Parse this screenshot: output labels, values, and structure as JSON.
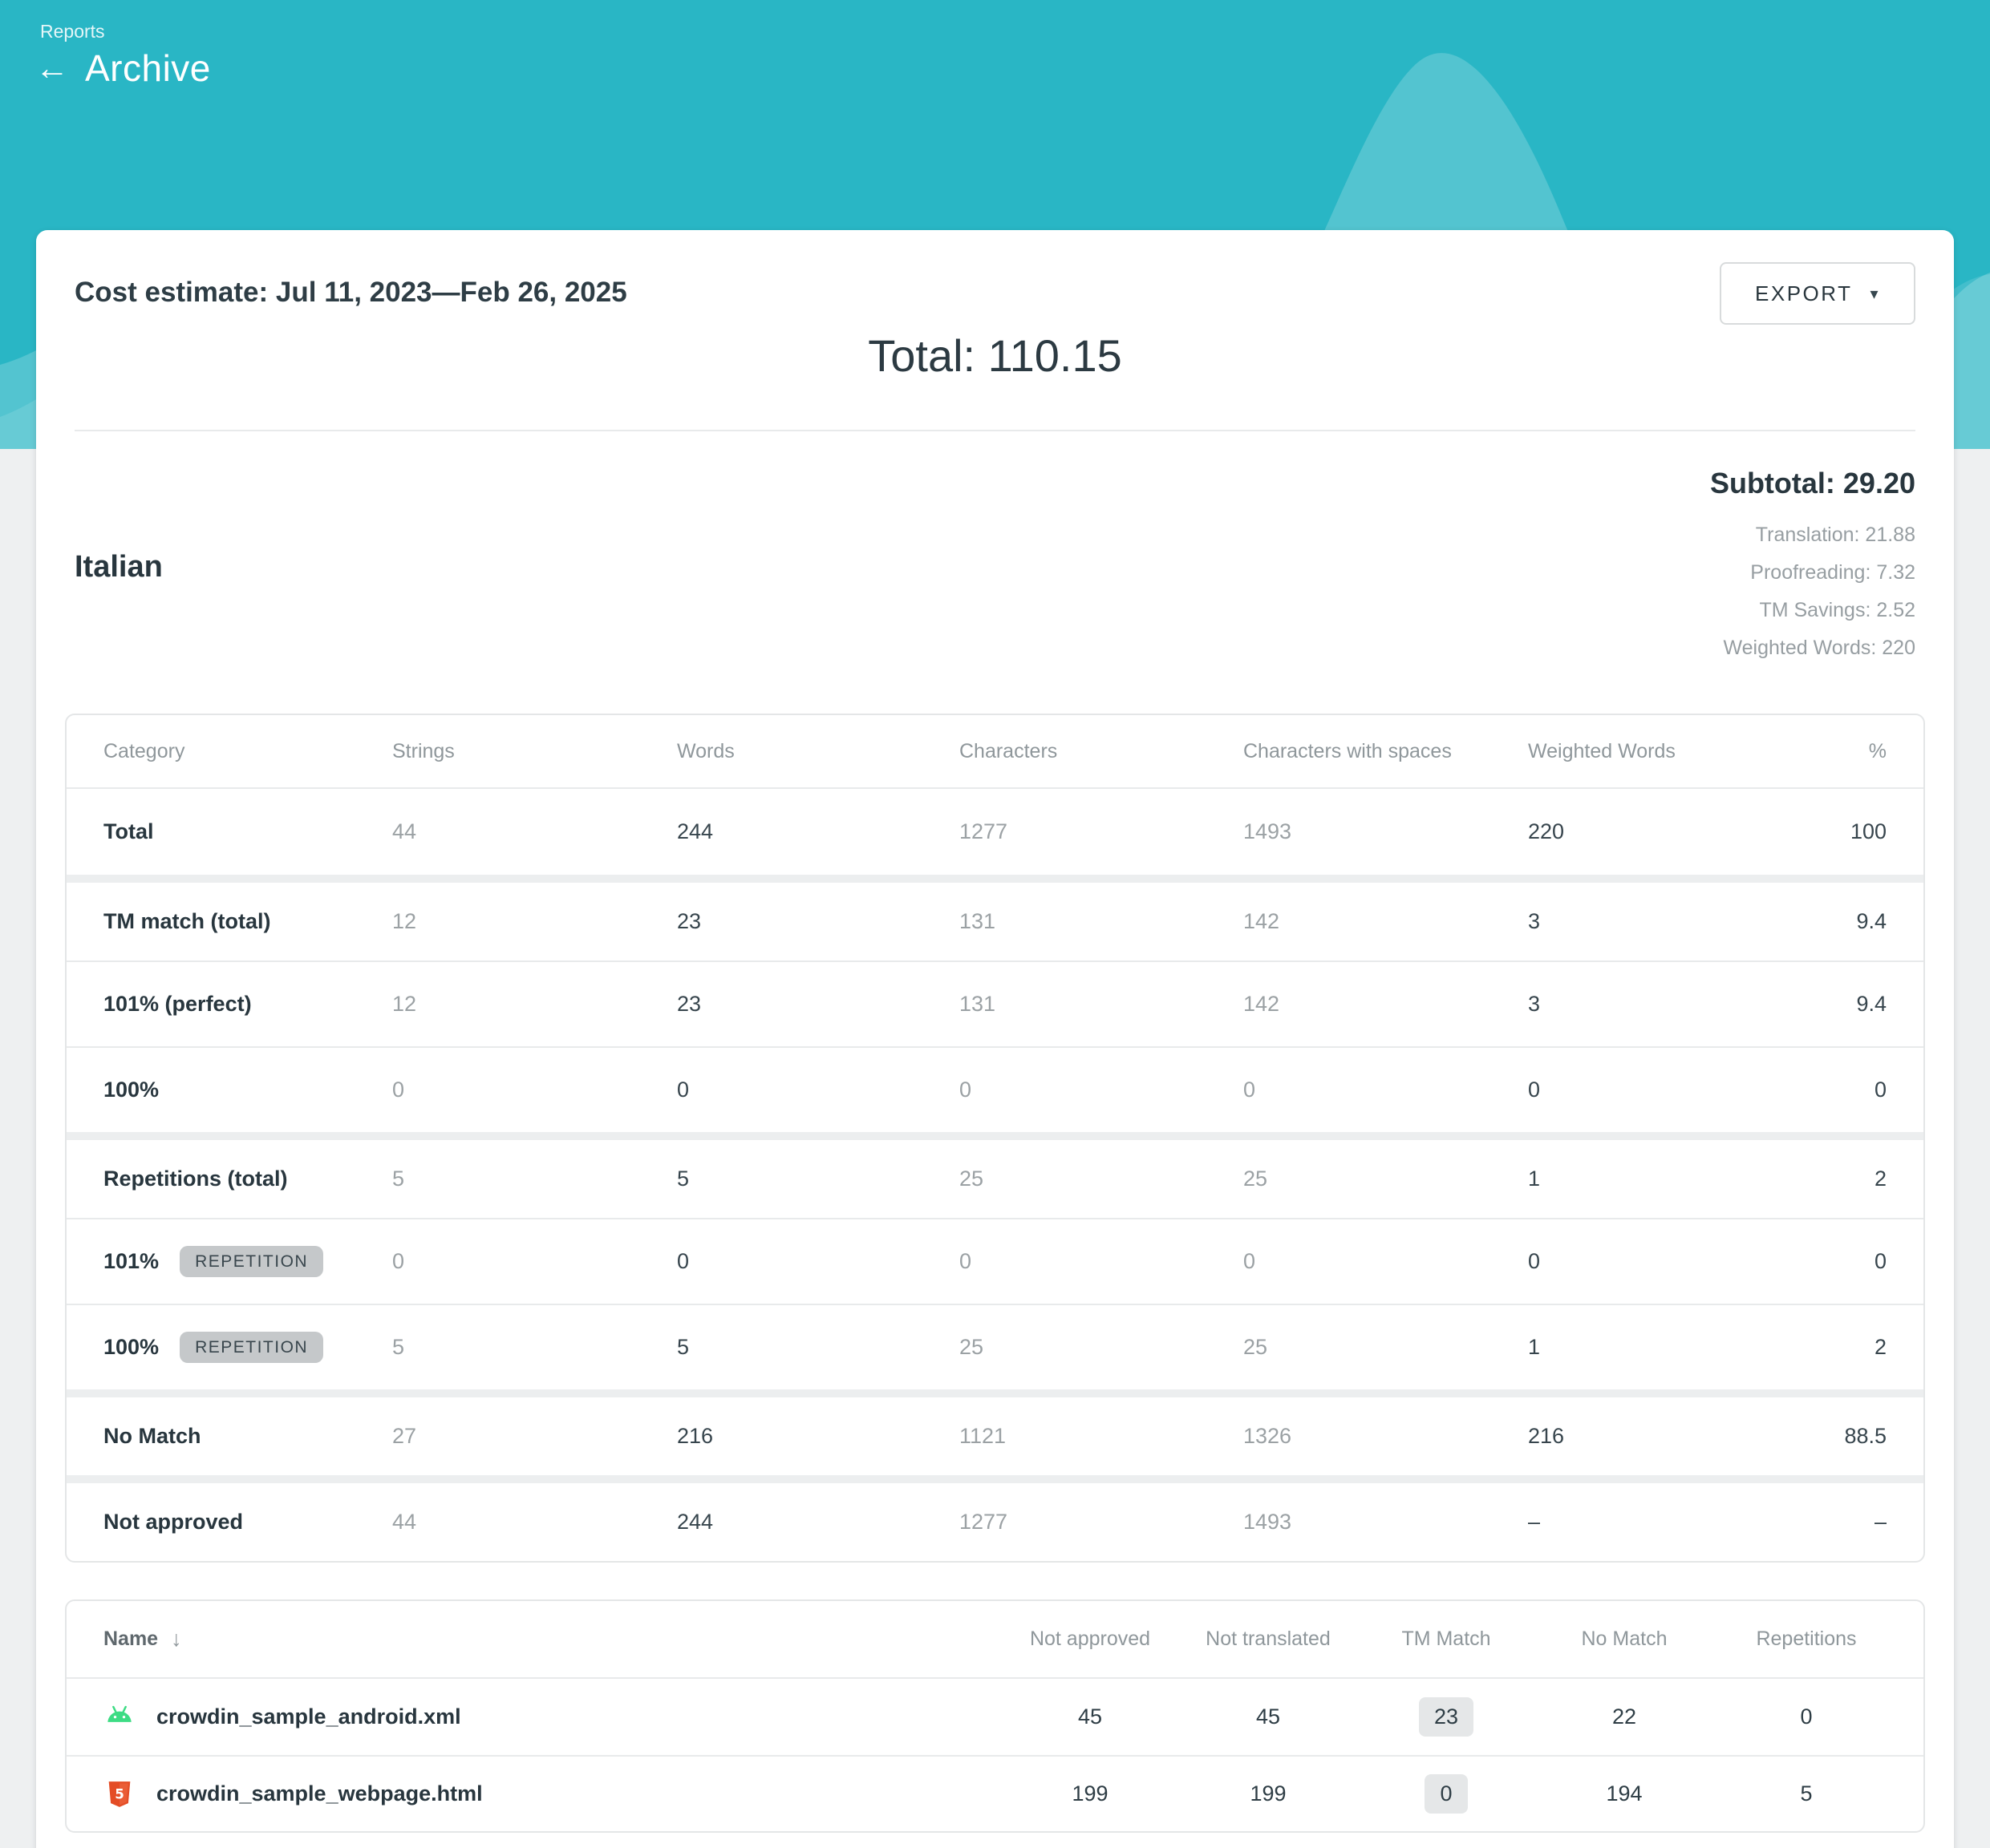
{
  "colors": {
    "header_teal": "#29b6c5",
    "android_green": "#3ddc84",
    "html5_orange": "#e44d26",
    "accent_dark": "#2e3d45"
  },
  "icons": {
    "back_arrow": "←",
    "caret_down": "▾",
    "sort_down": "↓"
  },
  "header": {
    "breadcrumb": "Reports",
    "title": "Archive"
  },
  "report": {
    "title": "Cost estimate: Jul 11, 2023—Feb 26, 2025",
    "export_label": "EXPORT",
    "total_line": "Total: 110.15"
  },
  "language_section": {
    "language": "Italian",
    "subtotal": "Subtotal: 29.20",
    "details": [
      "Translation: 21.88",
      "Proofreading: 7.32",
      "TM Savings: 2.52",
      "Weighted Words: 220"
    ]
  },
  "cost_table": {
    "headers": [
      "Category",
      "Strings",
      "Words",
      "Characters",
      "Characters with spaces",
      "Weighted Words",
      "%"
    ],
    "muted_columns": [
      0,
      2,
      3
    ],
    "rows": [
      {
        "category": "Total",
        "badge": null,
        "values": [
          "44",
          "244",
          "1277",
          "1493",
          "220",
          "100"
        ],
        "group_end": true
      },
      {
        "category": "TM match (total)",
        "badge": null,
        "values": [
          "12",
          "23",
          "131",
          "142",
          "3",
          "9.4"
        ],
        "group_end": false
      },
      {
        "category": "101% (perfect)",
        "badge": null,
        "values": [
          "12",
          "23",
          "131",
          "142",
          "3",
          "9.4"
        ],
        "group_end": false
      },
      {
        "category": "100%",
        "badge": null,
        "values": [
          "0",
          "0",
          "0",
          "0",
          "0",
          "0"
        ],
        "group_end": true
      },
      {
        "category": "Repetitions (total)",
        "badge": null,
        "values": [
          "5",
          "5",
          "25",
          "25",
          "1",
          "2"
        ],
        "group_end": false
      },
      {
        "category": "101%",
        "badge": "REPETITION",
        "values": [
          "0",
          "0",
          "0",
          "0",
          "0",
          "0"
        ],
        "group_end": false
      },
      {
        "category": "100%",
        "badge": "REPETITION",
        "values": [
          "5",
          "5",
          "25",
          "25",
          "1",
          "2"
        ],
        "group_end": true
      },
      {
        "category": "No Match",
        "badge": null,
        "values": [
          "27",
          "216",
          "1121",
          "1326",
          "216",
          "88.5"
        ],
        "group_end": true
      },
      {
        "category": "Not approved",
        "badge": null,
        "values": [
          "44",
          "244",
          "1277",
          "1493",
          "–",
          "–"
        ],
        "group_end": false
      }
    ]
  },
  "file_table": {
    "headers": [
      "Name",
      "Not approved",
      "Not translated",
      "TM Match",
      "No Match",
      "Repetitions"
    ],
    "tm_match_col": 2,
    "rows": [
      {
        "icon": "android",
        "name": "crowdin_sample_android.xml",
        "values": [
          "45",
          "45",
          "23",
          "22",
          "0"
        ]
      },
      {
        "icon": "html5",
        "name": "crowdin_sample_webpage.html",
        "values": [
          "199",
          "199",
          "0",
          "194",
          "5"
        ]
      }
    ]
  }
}
